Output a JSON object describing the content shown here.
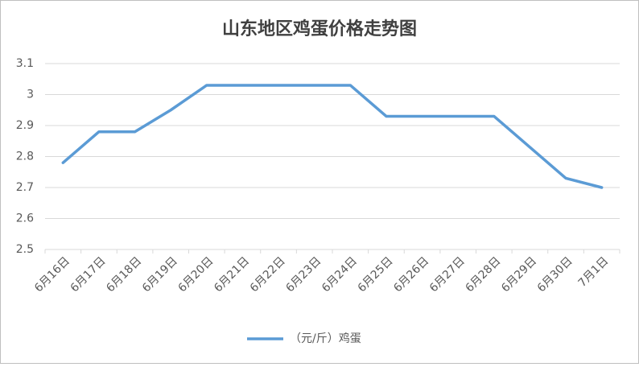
{
  "chart_data": {
    "type": "line",
    "title": "山东地区鸡蛋价格走势图",
    "categories": [
      "6月16日",
      "6月17日",
      "6月18日",
      "6月19日",
      "6月20日",
      "6月21日",
      "6月22日",
      "6月23日",
      "6月24日",
      "6月25日",
      "6月26日",
      "6月27日",
      "6月28日",
      "6月29日",
      "6月30日",
      "7月1日"
    ],
    "series": [
      {
        "name": "（元/斤）鸡蛋",
        "color": "#5b9bd5",
        "values": [
          2.78,
          2.88,
          2.88,
          2.95,
          3.03,
          3.03,
          3.03,
          3.03,
          3.03,
          2.93,
          2.93,
          2.93,
          2.93,
          2.83,
          2.73,
          2.7
        ]
      }
    ],
    "ylim": [
      2.5,
      3.1
    ],
    "yticks": [
      2.5,
      2.6,
      2.7,
      2.8,
      2.9,
      3,
      3.1
    ],
    "grid": true,
    "legend": "bottom"
  }
}
